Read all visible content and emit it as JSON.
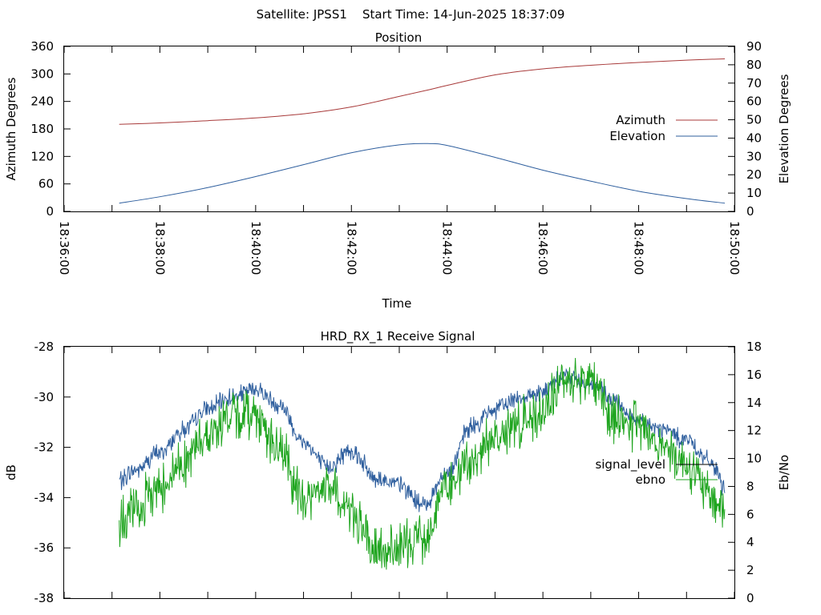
{
  "header": {
    "text": "Satellite: JPSS1    Start Time: 14-Jun-2025 18:37:09"
  },
  "chart_data": [
    {
      "type": "line",
      "title": "Position",
      "xlabel": "Time",
      "ylabel": "Azimuth Degrees",
      "y2label": "Elevation Degrees",
      "xlim": [
        0,
        14
      ],
      "ylim": [
        0,
        360
      ],
      "y2lim": [
        0,
        90
      ],
      "x_tick_labels": [
        "18:36:00",
        "18:38:00",
        "18:40:00",
        "18:42:00",
        "18:44:00",
        "18:46:00",
        "18:48:00",
        "18:50:00"
      ],
      "y_ticks": [
        0,
        60,
        120,
        180,
        240,
        300,
        360
      ],
      "y2_ticks": [
        0,
        10,
        20,
        30,
        40,
        50,
        60,
        70,
        80,
        90
      ],
      "legend_position": "right-middle",
      "series": [
        {
          "name": "Azimuth",
          "axis": "left",
          "color": "#a83a3a",
          "x": [
            1.15,
            2,
            3,
            4,
            5,
            6,
            7,
            7.6,
            8,
            9,
            10,
            11,
            12,
            13,
            13.8
          ],
          "y": [
            190,
            193,
            198,
            204,
            213,
            228,
            251,
            265,
            275,
            298,
            311,
            319,
            325,
            330,
            333
          ]
        },
        {
          "name": "Elevation",
          "axis": "right",
          "color": "#2f5f9e",
          "x": [
            1.15,
            2,
            3,
            4,
            5,
            6,
            7,
            7.6,
            8,
            9,
            10,
            11,
            12,
            13,
            13.8
          ],
          "y": [
            4.5,
            8,
            13,
            19,
            25.5,
            32,
            36.3,
            37,
            36,
            29.5,
            22.5,
            16.5,
            11,
            7,
            4.5
          ]
        }
      ]
    },
    {
      "type": "line",
      "title": "HRD_RX_1 Receive Signal",
      "ylabel": "dB",
      "y2label": "Eb/No",
      "xlim": [
        0,
        14
      ],
      "ylim": [
        -38,
        -28
      ],
      "y2lim": [
        0,
        18
      ],
      "y_ticks": [
        -38,
        -36,
        -34,
        -32,
        -30,
        -28
      ],
      "y2_ticks": [
        0,
        2,
        4,
        6,
        8,
        10,
        12,
        14,
        16,
        18
      ],
      "legend_position": "right-middle",
      "series": [
        {
          "name": "signal_level",
          "axis": "left",
          "color": "#2f5f9e",
          "x": [
            1.15,
            1.5,
            2,
            2.5,
            3,
            3.5,
            4,
            4.5,
            5,
            5.5,
            6,
            6.5,
            7,
            7.5,
            8,
            8.5,
            9,
            9.5,
            10,
            10.5,
            11,
            11.5,
            12,
            12.5,
            13,
            13.5,
            13.8
          ],
          "y": [
            -33.3,
            -32.9,
            -32.2,
            -31.3,
            -30.5,
            -30.0,
            -29.7,
            -30.3,
            -31.8,
            -32.8,
            -32.1,
            -33.2,
            -33.5,
            -34.3,
            -33.0,
            -31.2,
            -30.5,
            -30.0,
            -29.8,
            -29.2,
            -29.5,
            -30.2,
            -31.0,
            -31.3,
            -31.7,
            -32.6,
            -33.6
          ]
        },
        {
          "name": "ebno",
          "axis": "right",
          "color": "#1fa51f",
          "x": [
            1.15,
            1.5,
            2,
            2.5,
            3,
            3.5,
            4,
            4.5,
            5,
            5.5,
            6,
            6.5,
            7,
            7.5,
            8,
            8.5,
            9,
            9.5,
            10,
            10.5,
            11,
            11.5,
            12,
            12.5,
            13,
            13.5,
            13.8
          ],
          "y": [
            5.2,
            6.3,
            8.0,
            9.8,
            11.8,
            13.0,
            13.2,
            10.5,
            7.0,
            8.0,
            6.3,
            3.2,
            3.5,
            4.5,
            8.0,
            9.6,
            11.5,
            12.5,
            13.5,
            15.8,
            15.6,
            13.0,
            12.3,
            11.0,
            9.7,
            7.3,
            6.3
          ]
        }
      ]
    }
  ]
}
